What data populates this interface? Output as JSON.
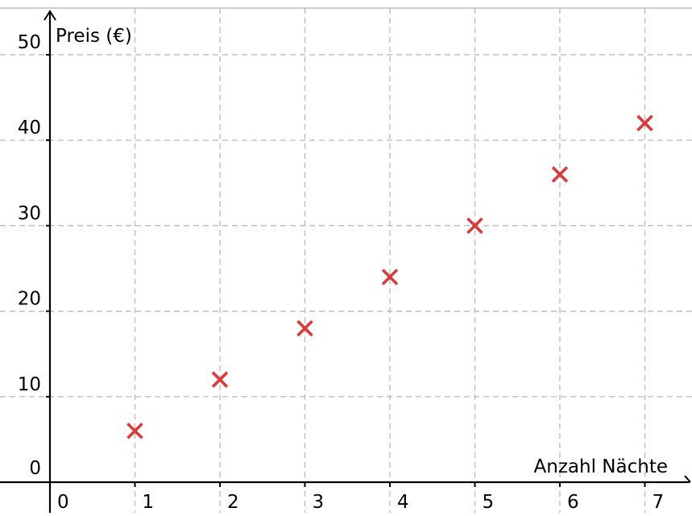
{
  "chart_data": {
    "type": "scatter",
    "title": "",
    "xlabel": "Anzahl Nächte",
    "ylabel": "Preis (€)",
    "xlim": [
      -0.55,
      7.55
    ],
    "ylim": [
      -1,
      52
    ],
    "x_ticks": [
      0,
      1,
      2,
      3,
      4,
      5,
      6,
      7
    ],
    "y_ticks": [
      0,
      10,
      20,
      30,
      40,
      50
    ],
    "x_tick_labels": [
      "0",
      "1",
      "2",
      "3",
      "4",
      "5",
      "6",
      "7"
    ],
    "y_tick_labels": [
      "0",
      "10",
      "20",
      "30",
      "40",
      "50"
    ],
    "grid": true,
    "grid_style": "dashed",
    "marker": "x",
    "marker_color": "#d83b3b",
    "series": [
      {
        "x": [
          1,
          2,
          3,
          4,
          5,
          6,
          7
        ],
        "y": [
          6,
          12,
          18,
          24,
          30,
          36,
          42
        ]
      }
    ]
  }
}
